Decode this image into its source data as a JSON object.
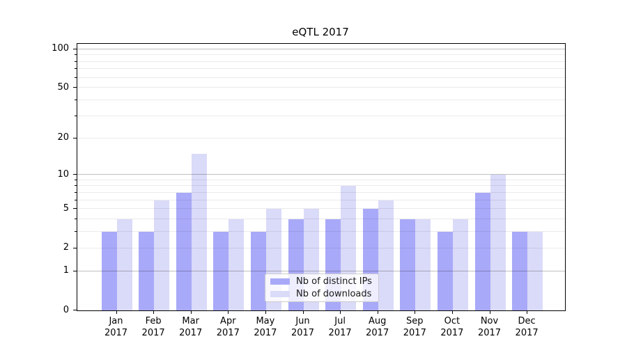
{
  "title": "eQTL 2017",
  "chart_data": {
    "type": "bar",
    "title": "eQTL 2017",
    "categories": [
      "Jan",
      "Feb",
      "Mar",
      "Apr",
      "May",
      "Jun",
      "Jul",
      "Aug",
      "Sep",
      "Oct",
      "Nov",
      "Dec"
    ],
    "category_year": "2017",
    "series": [
      {
        "name": "Nb of distinct IPs",
        "color": "#a9a9f9",
        "values": [
          3,
          3,
          7,
          3,
          3,
          4,
          4,
          5,
          4,
          3,
          7,
          3
        ]
      },
      {
        "name": "Nb of downloads",
        "color": "#dadaf9",
        "values": [
          4,
          6,
          15,
          4,
          5,
          5,
          8,
          6,
          4,
          4,
          10,
          3
        ]
      }
    ],
    "yscale": "log1p",
    "ylim": [
      0,
      110
    ],
    "grid": true,
    "legend_position": "lower center",
    "y_ticks": [
      {
        "value": 0,
        "label": "0",
        "major": true
      },
      {
        "value": 1,
        "label": "1",
        "major": true
      },
      {
        "value": 2,
        "label": "2",
        "major": false
      },
      {
        "value": 5,
        "label": "5",
        "major": false
      },
      {
        "value": 10,
        "label": "10",
        "major": true
      },
      {
        "value": 20,
        "label": "20",
        "major": false
      },
      {
        "value": 50,
        "label": "50",
        "major": false
      },
      {
        "value": 100,
        "label": "100",
        "major": true
      }
    ],
    "y_minor_gridlines": [
      3,
      4,
      6,
      7,
      8,
      9,
      30,
      40,
      60,
      70,
      80,
      90
    ],
    "grid_colors": {
      "major": "rgba(0,0,0,0.25)",
      "minor": "rgba(0,0,0,0.08)"
    }
  }
}
